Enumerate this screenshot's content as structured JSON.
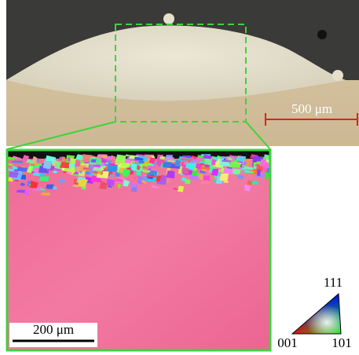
{
  "top_panel": {
    "scale_bar": "500 μm"
  },
  "bottom_panel": {
    "scale_bar": "200 μm"
  },
  "ipf_legend": {
    "top": "111",
    "left": "001",
    "right": "101"
  }
}
